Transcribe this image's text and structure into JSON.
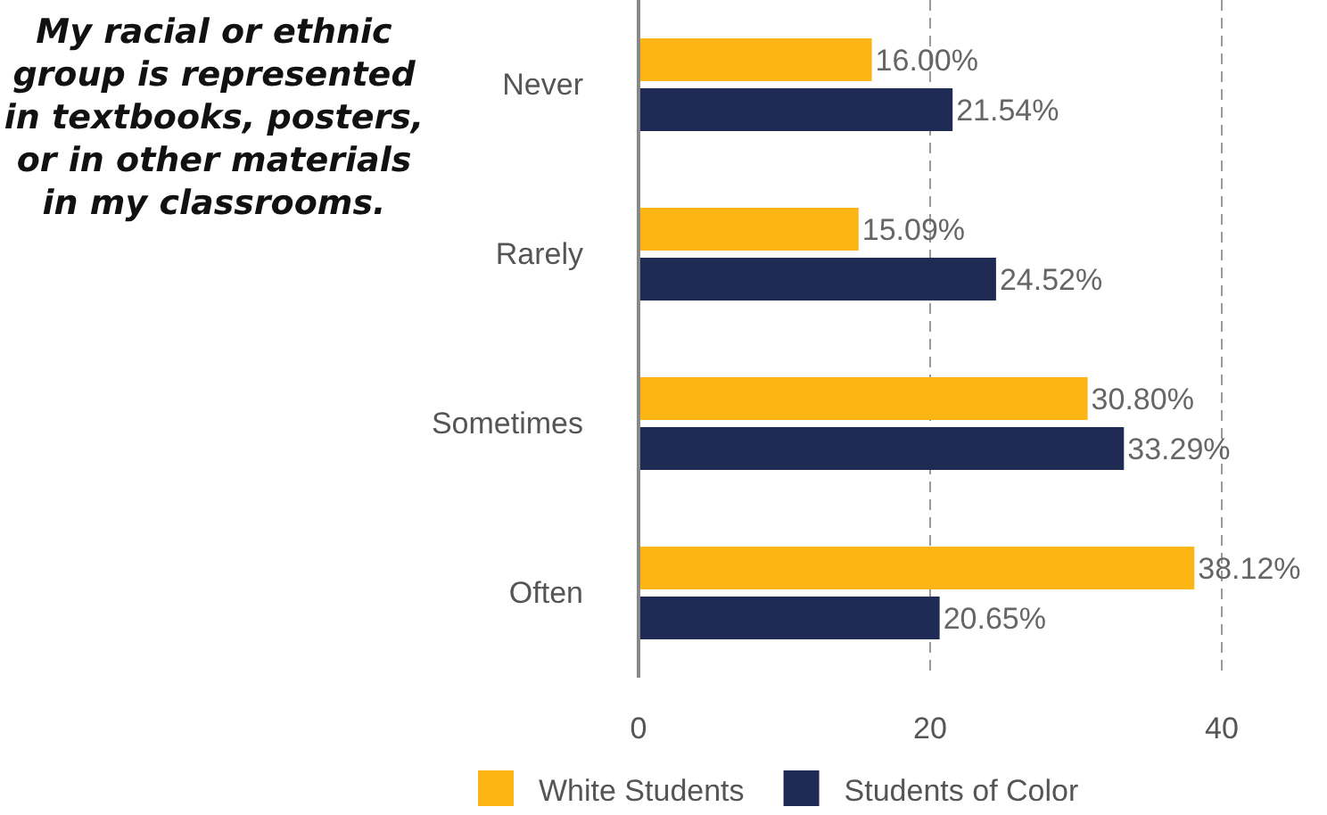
{
  "chart_data": {
    "type": "bar",
    "orientation": "horizontal",
    "title": "My racial or ethnic group is represented in textbooks, posters, or in other materials in my classrooms.",
    "categories": [
      "Never",
      "Rarely",
      "Sometimes",
      "Often"
    ],
    "series": [
      {
        "name": "White Students",
        "color": "#fdb515",
        "values": [
          16.0,
          15.09,
          30.8,
          38.12
        ],
        "value_labels": [
          "16.00%",
          "15.09%",
          "30.80%",
          "38.12%"
        ]
      },
      {
        "name": "Students of Color",
        "color": "#1f2a55",
        "values": [
          21.54,
          24.52,
          33.29,
          20.65
        ],
        "value_labels": [
          "21.54%",
          "24.52%",
          "33.29%",
          "20.65%"
        ]
      }
    ],
    "xlim": [
      0,
      40
    ],
    "xticks": [
      0,
      20,
      40
    ],
    "grid": "x",
    "legend": "bottom"
  }
}
